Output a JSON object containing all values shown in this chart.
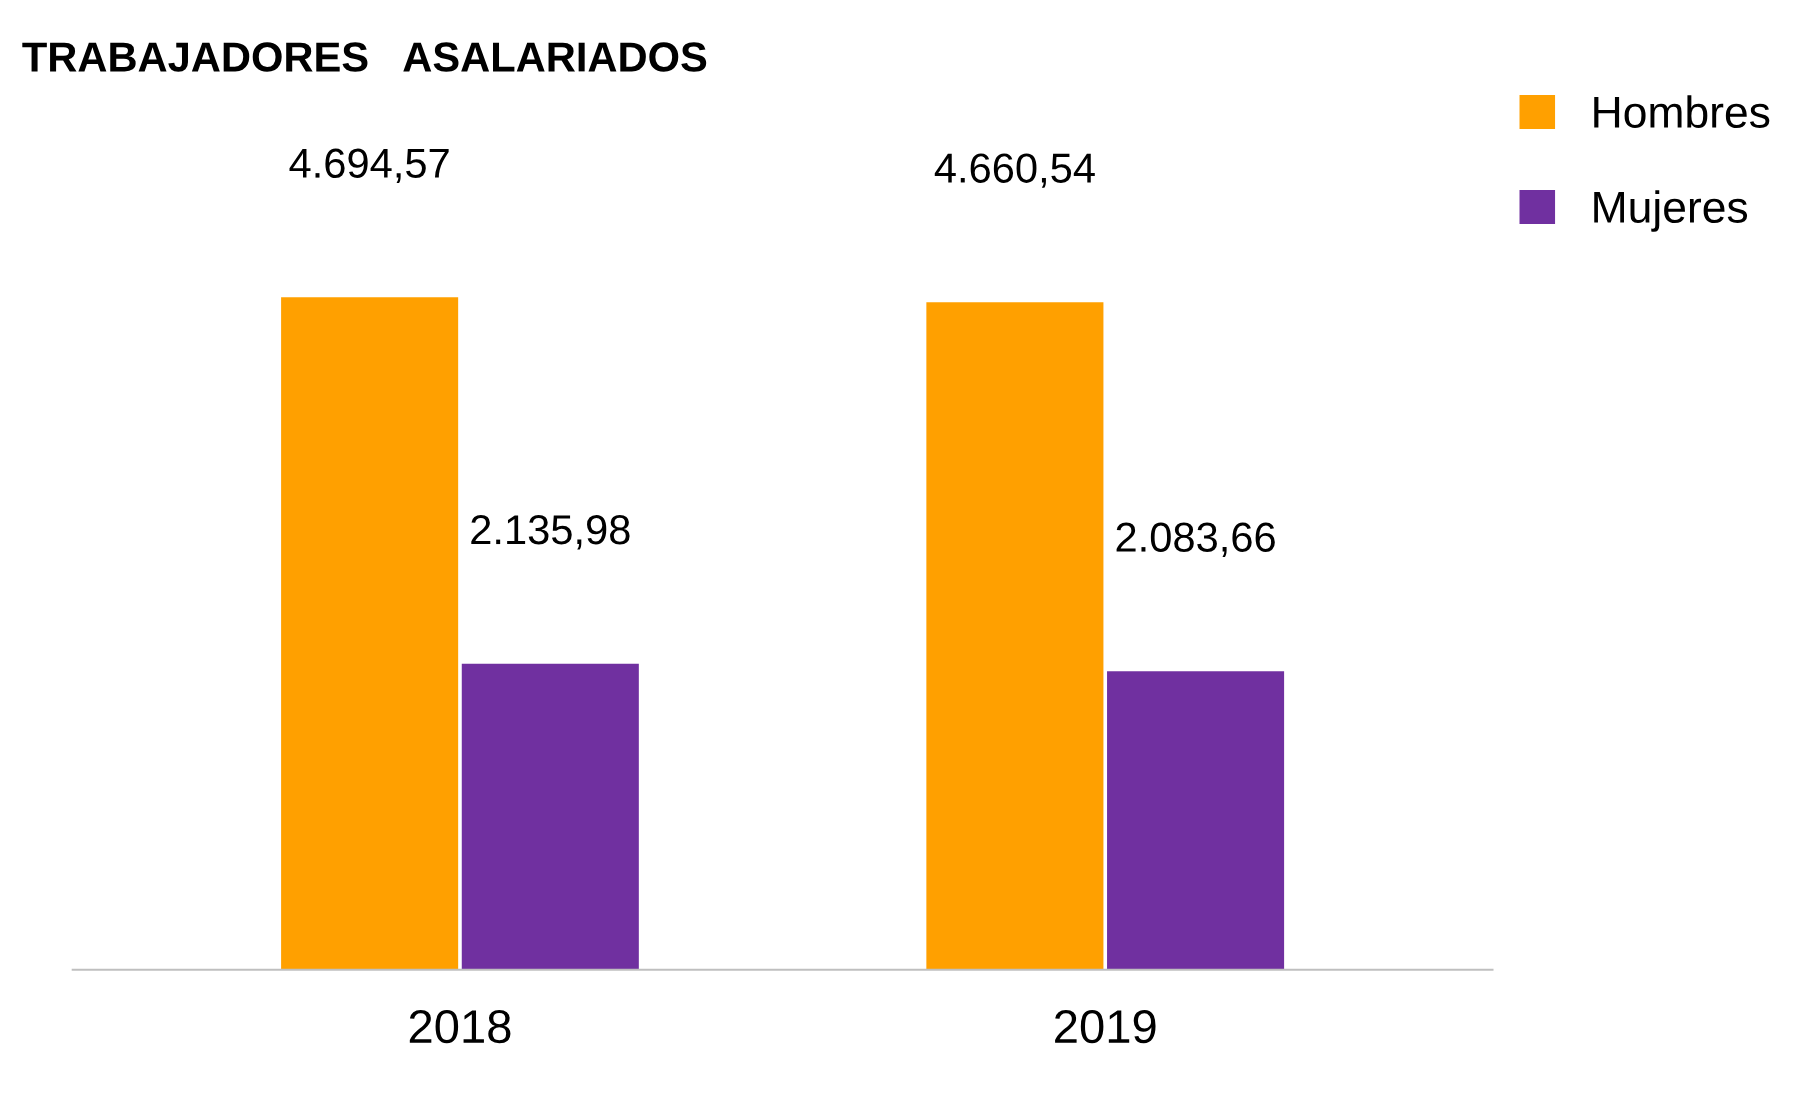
{
  "chart_data": {
    "type": "bar",
    "title": "TRABAJADORES   ASALARIADOS",
    "categories": [
      "2018",
      "2019"
    ],
    "series": [
      {
        "name": "Hombres",
        "color": "#ffa000",
        "values": [
          4694.57,
          4660.54
        ],
        "value_labels": [
          "4.694,57",
          "4.660,54"
        ]
      },
      {
        "name": "Mujeres",
        "color": "#7030a0",
        "values": [
          2135.98,
          2083.66
        ],
        "value_labels": [
          "2.135,98",
          "2.083,66"
        ]
      }
    ],
    "legend": "top right",
    "grid": false
  }
}
